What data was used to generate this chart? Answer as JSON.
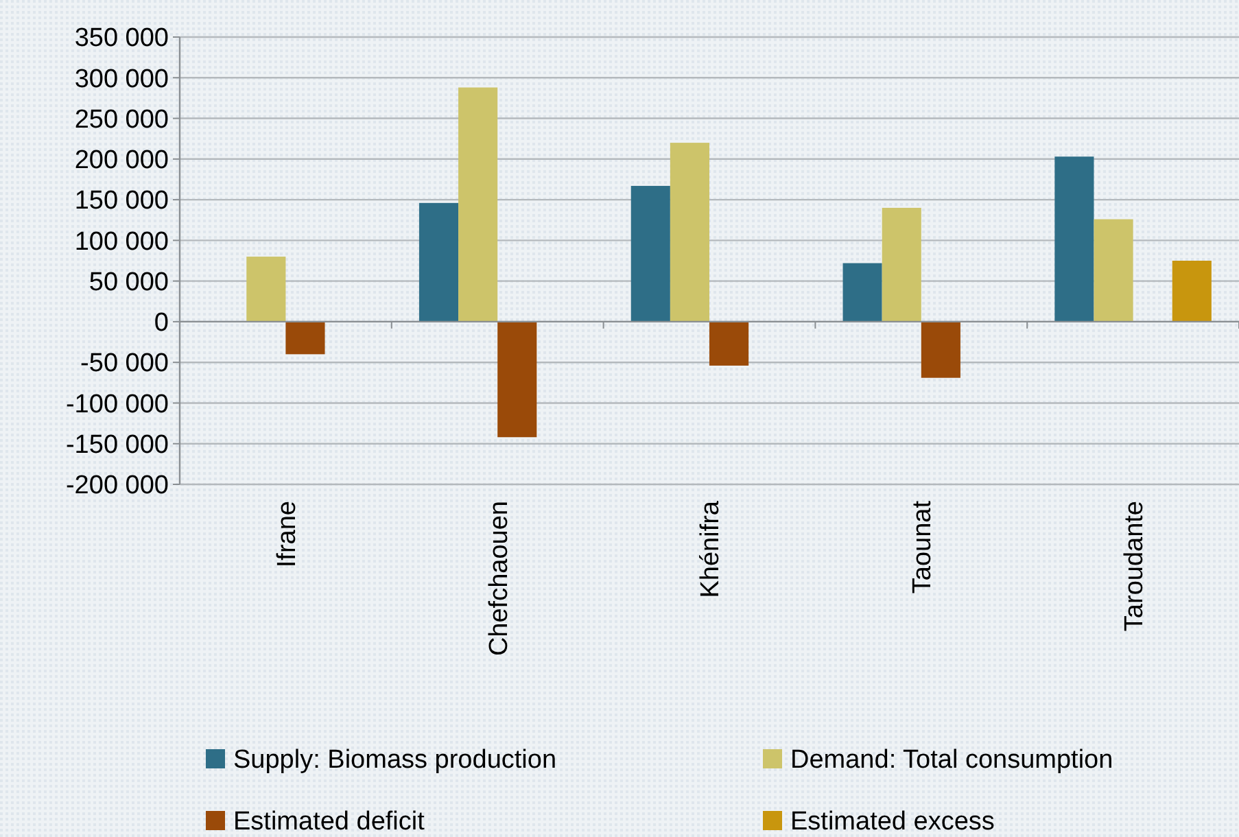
{
  "chart_data": {
    "type": "bar",
    "categories": [
      "Ifrane",
      "Chefchaouen",
      "Khénifra",
      "Taounat",
      "Taroudante"
    ],
    "series": [
      {
        "name": "Supply: Biomass production",
        "color": "#2e6e87",
        "values": [
          null,
          146000,
          167000,
          72000,
          203000
        ]
      },
      {
        "name": "Demand: Total consumption",
        "color": "#cdc46a",
        "values": [
          80000,
          288000,
          220000,
          140000,
          126000
        ]
      },
      {
        "name": "Estimated deficit",
        "color": "#9a4a09",
        "values": [
          -40000,
          -142000,
          -54000,
          -69000,
          null
        ]
      },
      {
        "name": "Estimated excess",
        "color": "#c8960e",
        "values": [
          null,
          null,
          null,
          null,
          75000
        ]
      }
    ],
    "ylim": [
      -200000,
      350000
    ],
    "yticks": [
      {
        "value": -200000,
        "label": "-200 000"
      },
      {
        "value": -150000,
        "label": "-150 000"
      },
      {
        "value": -100000,
        "label": "-100 000"
      },
      {
        "value": -50000,
        "label": "-50 000"
      },
      0,
      {
        "value": 50000,
        "label": "50 000"
      },
      {
        "value": 100000,
        "label": "100 000"
      },
      {
        "value": 150000,
        "label": "150 000"
      },
      {
        "value": 200000,
        "label": "200 000"
      },
      {
        "value": 250000,
        "label": "250 000"
      },
      {
        "value": 300000,
        "label": "300 000"
      },
      {
        "value": 350000,
        "label": "350 000"
      }
    ],
    "grid": "y",
    "legend": "bottom"
  }
}
